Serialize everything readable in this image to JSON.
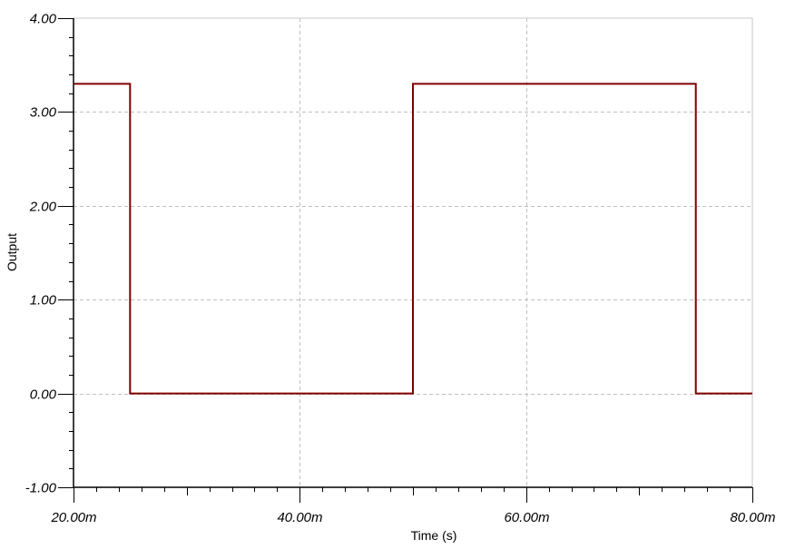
{
  "chart_data": {
    "type": "line",
    "title": "",
    "xlabel": "Time (s)",
    "ylabel": "Output",
    "xlim": [
      0.02,
      0.08
    ],
    "ylim": [
      -1,
      4
    ],
    "grid": true,
    "x_ticks": [
      0.02,
      0.04,
      0.06,
      0.08
    ],
    "x_tick_labels": [
      "20.00m",
      "40.00m",
      "60.00m",
      "80.00m"
    ],
    "y_ticks": [
      -1,
      0,
      1,
      2,
      3,
      4
    ],
    "y_tick_labels": [
      "-1.00",
      "0.00",
      "1.00",
      "2.00",
      "3.00",
      "4.00"
    ],
    "series": [
      {
        "color": "#800000",
        "x": [
          0.02,
          0.025,
          0.025,
          0.05,
          0.05,
          0.075,
          0.075,
          0.08
        ],
        "y": [
          3.3,
          3.3,
          0,
          0,
          3.3,
          3.3,
          0,
          0
        ]
      }
    ]
  }
}
